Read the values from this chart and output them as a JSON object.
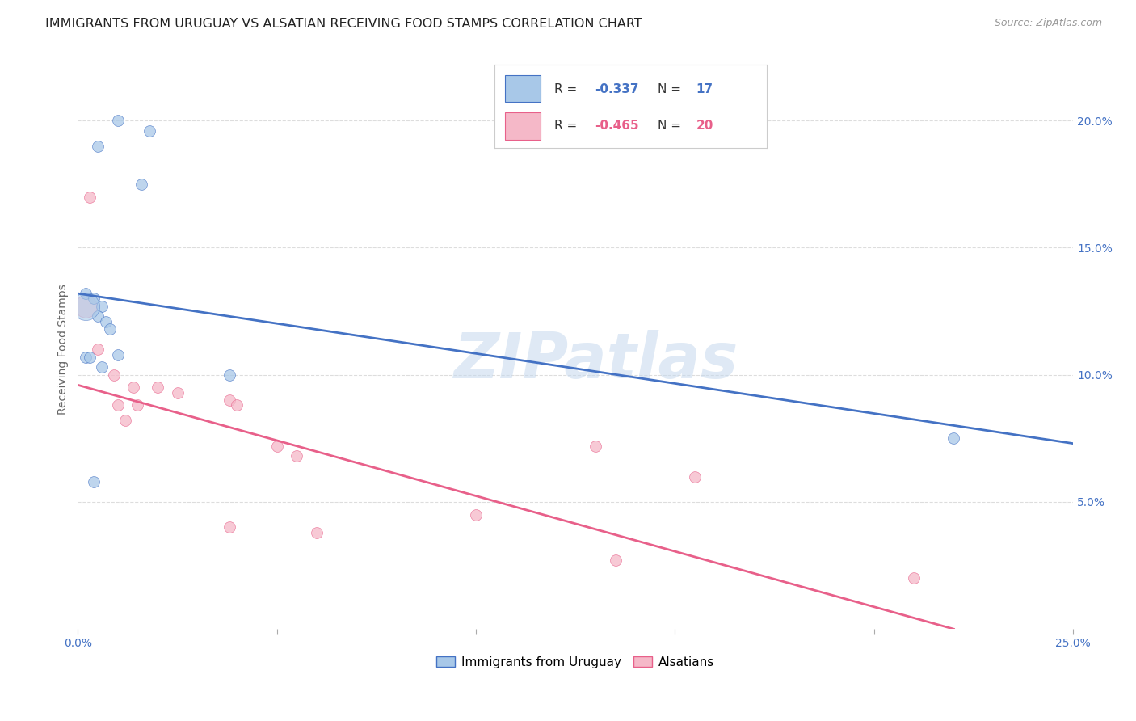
{
  "title": "IMMIGRANTS FROM URUGUAY VS ALSATIAN RECEIVING FOOD STAMPS CORRELATION CHART",
  "source": "Source: ZipAtlas.com",
  "ylabel": "Receiving Food Stamps",
  "xlim": [
    0.0,
    0.25
  ],
  "ylim": [
    0.0,
    0.22
  ],
  "xticks": [
    0.0,
    0.05,
    0.1,
    0.15,
    0.2,
    0.25
  ],
  "xticklabels": [
    "0.0%",
    "",
    "",
    "",
    "",
    "25.0%"
  ],
  "yticks": [
    0.05,
    0.1,
    0.15,
    0.2
  ],
  "yticklabels": [
    "5.0%",
    "10.0%",
    "15.0%",
    "20.0%"
  ],
  "blue_label": "Immigrants from Uruguay",
  "pink_label": "Alsatians",
  "blue_R": "-0.337",
  "blue_N": "17",
  "pink_R": "-0.465",
  "pink_N": "20",
  "blue_color": "#a8c8e8",
  "pink_color": "#f5b8c8",
  "blue_line_color": "#4472c4",
  "pink_line_color": "#e8608a",
  "watermark": "ZIPatlas",
  "blue_points_x": [
    0.01,
    0.018,
    0.005,
    0.016,
    0.002,
    0.004,
    0.006,
    0.005,
    0.007,
    0.008,
    0.01,
    0.002,
    0.003,
    0.006,
    0.004,
    0.22,
    0.038
  ],
  "blue_points_y": [
    0.2,
    0.196,
    0.19,
    0.175,
    0.132,
    0.13,
    0.127,
    0.123,
    0.121,
    0.118,
    0.108,
    0.107,
    0.107,
    0.103,
    0.058,
    0.075,
    0.1
  ],
  "pink_points_x": [
    0.003,
    0.005,
    0.009,
    0.014,
    0.02,
    0.01,
    0.015,
    0.012,
    0.025,
    0.038,
    0.04,
    0.05,
    0.055,
    0.13,
    0.155,
    0.1,
    0.038,
    0.06,
    0.135,
    0.21
  ],
  "pink_points_y": [
    0.17,
    0.11,
    0.1,
    0.095,
    0.095,
    0.088,
    0.088,
    0.082,
    0.093,
    0.09,
    0.088,
    0.072,
    0.068,
    0.072,
    0.06,
    0.045,
    0.04,
    0.038,
    0.027,
    0.02
  ],
  "blue_trendline_x": [
    0.0,
    0.25
  ],
  "blue_trendline_y": [
    0.132,
    0.073
  ],
  "pink_trendline_x": [
    0.0,
    0.22
  ],
  "pink_trendline_y": [
    0.096,
    0.0
  ],
  "bg_color": "#ffffff",
  "grid_color": "#dddddd",
  "title_fontsize": 11.5,
  "axis_fontsize": 10,
  "legend_fontsize": 11,
  "source_fontsize": 9,
  "marker_size": 100,
  "large_blue_x": [
    0.002
  ],
  "large_blue_y": [
    0.127
  ],
  "large_blue_size": 600,
  "large_pink_x": [
    0.002
  ],
  "large_pink_y": [
    0.127
  ],
  "large_pink_size": 400
}
